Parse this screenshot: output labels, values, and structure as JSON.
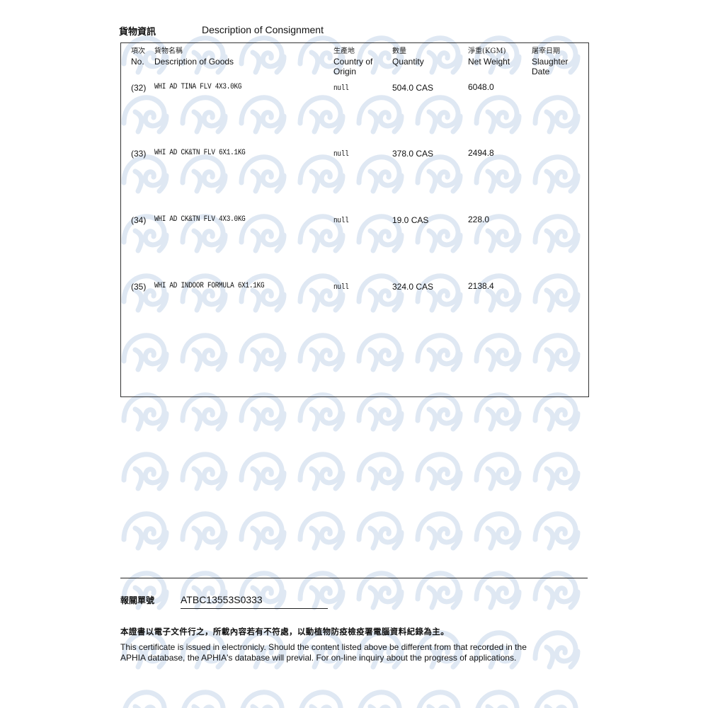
{
  "section": {
    "title_zh": "貨物資訊",
    "title_en": "Description of Consignment"
  },
  "table": {
    "headers": [
      {
        "zh": "項次",
        "en": "No."
      },
      {
        "zh": "貨物名稱",
        "en": "Description of Goods"
      },
      {
        "zh": "生產地",
        "en": "Country of Origin"
      },
      {
        "zh": "數量",
        "en": "Quantity"
      },
      {
        "zh": "淨重(KGM)",
        "en": "Net Weight"
      },
      {
        "zh": "屠宰日期",
        "en": "Slaughter Date"
      }
    ],
    "rows": [
      {
        "no": "(32)",
        "desc": "WHI AD TINA FLV 4X3.0KG",
        "origin": "null",
        "qty": "504.0 CAS",
        "weight": "6048.0",
        "date": ""
      },
      {
        "no": "(33)",
        "desc": "WHI AD CK&TN FLV 6X1.1KG",
        "origin": "null",
        "qty": "378.0 CAS",
        "weight": "2494.8",
        "date": ""
      },
      {
        "no": "(34)",
        "desc": "WHI AD CK&TN FLV 4X3.0KG",
        "origin": "null",
        "qty": "19.0 CAS",
        "weight": "228.0",
        "date": ""
      },
      {
        "no": "(35)",
        "desc": "WHI AD INDOOR FORMULA 6X1.1KG",
        "origin": "null",
        "qty": "324.0 CAS",
        "weight": "2138.4",
        "date": ""
      }
    ]
  },
  "declaration": {
    "label_zh": "報關單號",
    "number": "ATBC13553S0333"
  },
  "notice": {
    "zh": "本證書以電子文件行之，所載內容若有不符處，以動植物防疫檢疫署電腦資料紀錄為主。",
    "en_line1": "This certificate is issued in electronicly. Should the content listed above be different from that recorded in the",
    "en_line2": "APHIA database, the APHIA's database will previal. For on-line inquiry about the progress of applications."
  },
  "colors": {
    "watermark": "#dfe8f3",
    "text": "#111111"
  },
  "watermark_icon": "aphia-swirl-logo"
}
